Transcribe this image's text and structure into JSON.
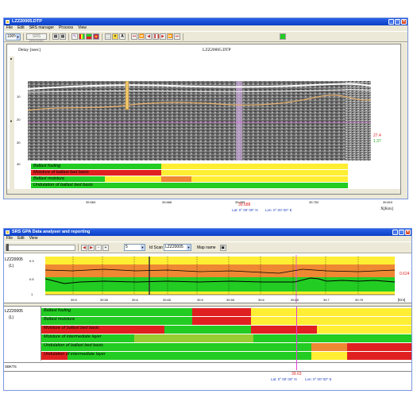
{
  "top_window": {
    "title": "LZZ20005.DTP",
    "menu": [
      "File",
      "Edit",
      "SRS manager",
      "Process",
      "View"
    ],
    "toolbar": {
      "zoom": "100%",
      "srs_button": "SRS process"
    },
    "view": {
      "delay_label": "Delay [nsec]",
      "file_label": "LZZ20005.DTP",
      "y_ticks": [
        "10",
        "20",
        "30",
        "40"
      ],
      "x_ticks": [
        "39.563",
        "39.666",
        "39.699",
        "39.752",
        "39.810"
      ],
      "x_unit": "X[Km]",
      "cursor_x": "39.688",
      "lat": "Lat: 0° 00' 00'' N",
      "lon": "Lon: 0° 00' 00'' E",
      "readout_red": "27.4",
      "readout_green": "1.37"
    },
    "bars": [
      {
        "label": "Ballast fouling",
        "segments": [
          [
            "#22cc22",
            0.0,
            0.412
          ],
          [
            "#ffee33",
            0.412,
            1.0
          ]
        ]
      },
      {
        "label": "Moisture of ballast bed basis",
        "segments": [
          [
            "#e02020",
            0.0,
            0.412
          ],
          [
            "#ffee33",
            0.412,
            1.0
          ]
        ]
      },
      {
        "label": "Ballast moisture",
        "segments": [
          [
            "#22cc22",
            0.0,
            0.232
          ],
          [
            "#ffee33",
            0.232,
            0.412
          ],
          [
            "#ee8833",
            0.412,
            0.506
          ],
          [
            "#ffee33",
            0.506,
            1.0
          ]
        ]
      },
      {
        "label": "Undulation of ballast bed basis",
        "segments": [
          [
            "#22cc22",
            0.0,
            1.0
          ]
        ]
      }
    ]
  },
  "bottom_window": {
    "title": "SRS GPA Data analyser and reporting",
    "menu": [
      "File",
      "Edit",
      "View"
    ],
    "toolbar": {
      "zoom_minus": "-",
      "zoom_plus": "+",
      "zoom_value": "5",
      "id_scan_label": "Id Scan",
      "id_scan_value": "LZZ20005",
      "map_name_label": "Map name"
    },
    "chart_panel": {
      "track_label": "LZZ20005",
      "track_unit": "(L)",
      "y_ticks": [
        "0.3",
        "0.5",
        "1"
      ],
      "x_ticks": [
        "39.5",
        "39.55",
        "39.6",
        "39.65",
        "39.5",
        "39.55",
        "39.6",
        "39.65",
        "39.7",
        "39.75"
      ],
      "x_unit": "[Km]",
      "readout": "0.624"
    },
    "bars_panel": {
      "track_label": "LZZ20005",
      "track_unit": "(L)"
    },
    "bars": [
      {
        "label": "Ballast fouling",
        "segments": [
          [
            "#22cc22",
            0.0,
            0.407
          ],
          [
            "#e02020",
            0.407,
            0.566
          ],
          [
            "#ffee33",
            0.566,
            1.0
          ]
        ]
      },
      {
        "label": "Ballast moisture",
        "segments": [
          [
            "#22cc22",
            0.0,
            0.407
          ],
          [
            "#e02020",
            0.407,
            0.566
          ],
          [
            "#ffee33",
            0.566,
            1.0
          ]
        ]
      },
      {
        "label": "Moisture of ballast bed basis",
        "segments": [
          [
            "#e02020",
            0.0,
            0.333
          ],
          [
            "#22cc22",
            0.333,
            0.566
          ],
          [
            "#e02020",
            0.566,
            0.745
          ],
          [
            "#ffee33",
            0.745,
            1.0
          ]
        ]
      },
      {
        "label": "Moisture of intermediate layer",
        "segments": [
          [
            "#22cc22",
            0.0,
            0.25
          ],
          [
            "#99cc33",
            0.25,
            0.573
          ],
          [
            "#22cc22",
            0.573,
            1.0
          ]
        ]
      },
      {
        "label": "Undulation of ballast bed basis",
        "segments": [
          [
            "#22cc22",
            0.0,
            0.73
          ],
          [
            "#ee8833",
            0.73,
            0.826
          ],
          [
            "#e02020",
            0.826,
            1.0
          ]
        ]
      },
      {
        "label": "Undulation of intermediate layer",
        "segments": [
          [
            "#e02020",
            0.0,
            0.07
          ],
          [
            "#22cc22",
            0.07,
            0.73
          ],
          [
            "#ffee33",
            0.73,
            0.826
          ],
          [
            "#e02020",
            0.826,
            1.0
          ]
        ]
      }
    ],
    "bottom_label": "SBKTS",
    "cursor_x": "39.63",
    "lat": "Lat: 0° 00' 00'' N",
    "lon": "Lon: 0° 00' 00'' E"
  }
}
